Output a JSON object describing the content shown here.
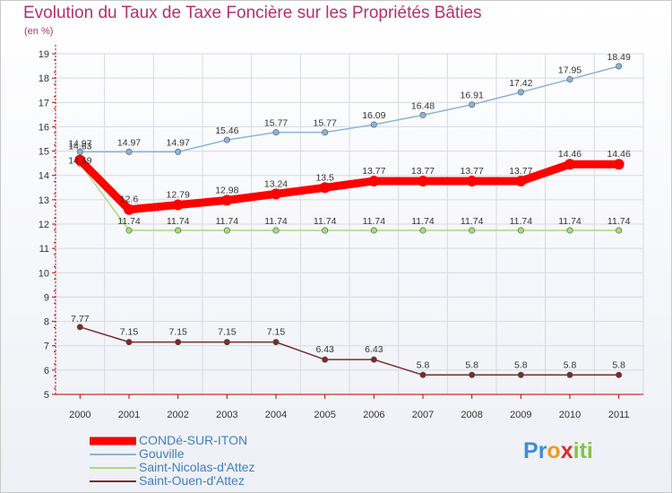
{
  "header": {
    "title": "Evolution du Taux de Taxe Foncière sur les Propriétés Bâties",
    "subtitle": "(en %)"
  },
  "logo": {
    "letters": [
      "P",
      "r",
      "o",
      "x",
      "i",
      "t",
      "i"
    ],
    "colors": [
      "#3a8fd6",
      "#3a8fd6",
      "#f29a1f",
      "#d62f2f",
      "#86c440",
      "#86c440",
      "#86c440"
    ]
  },
  "chart_data": {
    "type": "line",
    "x": [
      "2000",
      "2001",
      "2002",
      "2003",
      "2004",
      "2005",
      "2006",
      "2007",
      "2008",
      "2009",
      "2010",
      "2011"
    ],
    "ylim": [
      5,
      19
    ],
    "yticks": [
      "5",
      "6",
      "7",
      "8",
      "9",
      "10",
      "11",
      "12",
      "13",
      "14",
      "15",
      "16",
      "17",
      "18",
      "19"
    ],
    "grid": true,
    "legend": "bottom-left",
    "series": [
      {
        "name": "CONDé-SUR-ITON",
        "color": "#ff0000",
        "values": [
          14.63,
          12.6,
          12.79,
          12.98,
          13.24,
          13.5,
          13.77,
          13.77,
          13.77,
          13.77,
          14.46,
          14.46
        ],
        "labels": [
          "14.63",
          "12.6",
          "12.79",
          "12.98",
          "13.24",
          "13.5",
          "13.77",
          "13.77",
          "13.77",
          "13.77",
          "14.46",
          "14.46"
        ]
      },
      {
        "name": "Gouville",
        "color": "#8ab4dc",
        "values": [
          14.97,
          14.97,
          14.97,
          15.46,
          15.77,
          15.77,
          16.09,
          16.48,
          16.91,
          17.42,
          17.95,
          18.49
        ],
        "labels": [
          "14.97",
          "14.97",
          "14.97",
          "15.46",
          "15.77",
          "15.77",
          "16.09",
          "16.48",
          "16.91",
          "17.42",
          "17.95",
          "18.49"
        ]
      },
      {
        "name": "Saint-Nicolas-d'Attez",
        "color": "#a6dc7a",
        "values": [
          14.49,
          11.74,
          11.74,
          11.74,
          11.74,
          11.74,
          11.74,
          11.74,
          11.74,
          11.74,
          11.74,
          11.74
        ],
        "labels": [
          "14.49",
          "11.74",
          "11.74",
          "11.74",
          "11.74",
          "11.74",
          "11.74",
          "11.74",
          "11.74",
          "11.74",
          "11.74",
          "11.74"
        ]
      },
      {
        "name": "Saint-Ouen-d'Attez",
        "color": "#7a2c2c",
        "values": [
          7.77,
          7.15,
          7.15,
          7.15,
          7.15,
          6.43,
          6.43,
          5.8,
          5.8,
          5.8,
          5.8,
          5.8
        ],
        "labels": [
          "7.77",
          "7.15",
          "7.15",
          "7.15",
          "7.15",
          "6.43",
          "6.43",
          "5.8",
          "5.8",
          "5.8",
          "5.8",
          "5.8"
        ]
      }
    ]
  }
}
